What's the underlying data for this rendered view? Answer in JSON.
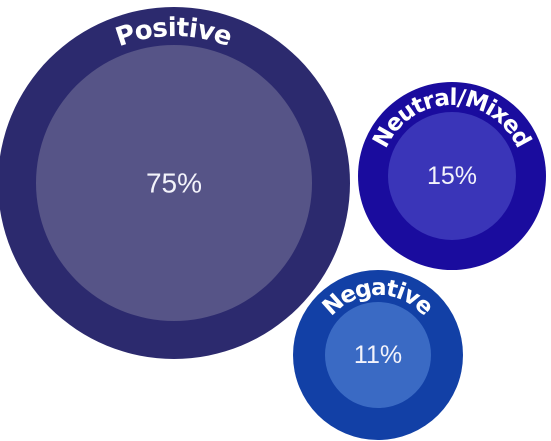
{
  "chart_data": {
    "type": "bubble",
    "unit": "%",
    "series": [
      {
        "name": "Positive",
        "value": 75,
        "value_label": "75%",
        "outer_color": "#2c2a6e",
        "inner_color": "#565487"
      },
      {
        "name": "Neutral/Mixed",
        "value": 15,
        "value_label": "15%",
        "outer_color": "#1a0c9e",
        "inner_color": "#3a35b8"
      },
      {
        "name": "Negative",
        "value": 11,
        "value_label": "11%",
        "outer_color": "#1240a6",
        "inner_color": "#3a6ac4"
      }
    ]
  }
}
